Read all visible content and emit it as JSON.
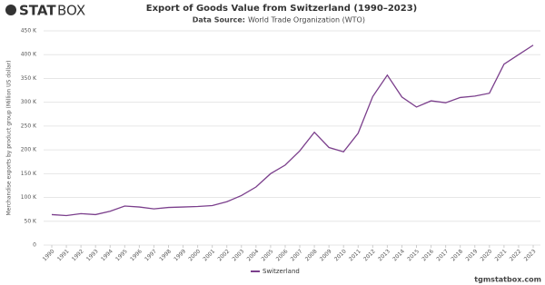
{
  "chart_data": {
    "type": "line",
    "brand": [
      "STAT",
      "BOX"
    ],
    "title": "Export of Goods Value from Switzerland (1990–2023)",
    "source_label": "Data Source:",
    "source": "World Trade Organization (WTO)",
    "y_label": "Merchandise exports by product group (Million US dollar)",
    "website": "tgmstatbox.com",
    "categories": [
      "1990",
      "1991",
      "1992",
      "1993",
      "1994",
      "1995",
      "1996",
      "1997",
      "1998",
      "1999",
      "2000",
      "2001",
      "2002",
      "2003",
      "2004",
      "2005",
      "2006",
      "2007",
      "2008",
      "2009",
      "2010",
      "2011",
      "2012",
      "2013",
      "2014",
      "2015",
      "2016",
      "2017",
      "2018",
      "2019",
      "2020",
      "2021",
      "2022",
      "2023"
    ],
    "series": [
      {
        "name": "Switzerland",
        "color": "#7b3f8c",
        "values": [
          64000,
          62000,
          66000,
          64000,
          71000,
          82000,
          80000,
          76000,
          79000,
          80000,
          81000,
          83000,
          91000,
          104000,
          122000,
          150000,
          168000,
          198000,
          237000,
          205000,
          196000,
          235000,
          312000,
          357000,
          311000,
          290000,
          303000,
          299000,
          310000,
          313000,
          319000,
          380000,
          400000,
          420000
        ]
      }
    ],
    "ylim": [
      0,
      450000
    ],
    "yticks": [
      {
        "value": 0,
        "label": "0"
      },
      {
        "value": 50000,
        "label": "50 K"
      },
      {
        "value": 100000,
        "label": "100 K"
      },
      {
        "value": 150000,
        "label": "150 K"
      },
      {
        "value": 200000,
        "label": "200 K"
      },
      {
        "value": 250000,
        "label": "250 K"
      },
      {
        "value": 300000,
        "label": "300 K"
      },
      {
        "value": 350000,
        "label": "350 K"
      },
      {
        "value": 400000,
        "label": "400 K"
      },
      {
        "value": 450000,
        "label": "450 K"
      }
    ],
    "grid": true
  }
}
